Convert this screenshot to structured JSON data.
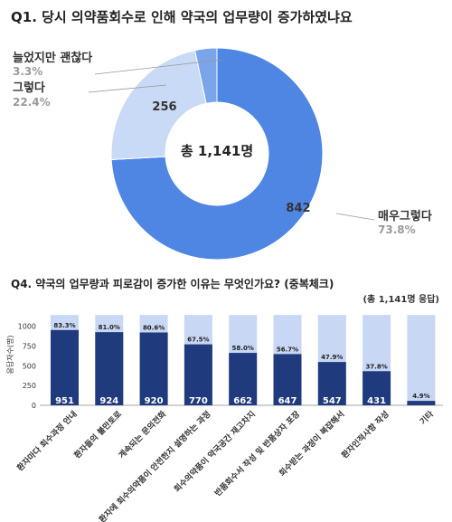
{
  "chart_data": [
    {
      "type": "pie",
      "title": "Q1. 당시 의약품회수로 인해 약국의 업무량이 증가하였냐요",
      "center_label": "총 1,141명",
      "slices": [
        {
          "label": "매우그렇다",
          "value": 842,
          "percent": "73.8%",
          "color": "#4f86e3"
        },
        {
          "label": "그렇다",
          "value": 256,
          "percent": "22.4%",
          "color": "#c9daf6"
        },
        {
          "label": "늘었지만 괜찮다",
          "value": 38,
          "percent": "3.3%",
          "color": "#7aa5ea"
        }
      ],
      "inner_labels": [
        "842",
        "256"
      ]
    },
    {
      "type": "bar",
      "title": "Q4. 약국의 업무량과 피로감이 증가한 이유는 무엇인가요? (중복체크)",
      "note": "(총 1,141명 응답)",
      "ylabel": "응답자수(명)",
      "ylim": [
        0,
        1200
      ],
      "yticks": [
        0,
        250,
        500,
        750,
        1000
      ],
      "total": 1141,
      "categories": [
        "환자마다 회수과정 안내",
        "환자들의 불만토로",
        "계속되는 문의전화",
        "환자에 회수의약품이 안전한지 설명하는 과정",
        "회수의약품이 약국공간 재고차지",
        "반품회수서 작성 및 반품상자 포장",
        "회수받는 과정이 복잡해서",
        "환자인적사항 작성",
        "기타"
      ],
      "values": [
        951,
        924,
        920,
        770,
        662,
        647,
        547,
        431,
        56
      ],
      "percents": [
        "83.3%",
        "81.0%",
        "80.6%",
        "67.5%",
        "58.0%",
        "56.7%",
        "47.9%",
        "37.8%",
        "4.9%"
      ],
      "colors": {
        "bar": "#1f3a7d",
        "background": "#c8d8f4"
      }
    }
  ]
}
